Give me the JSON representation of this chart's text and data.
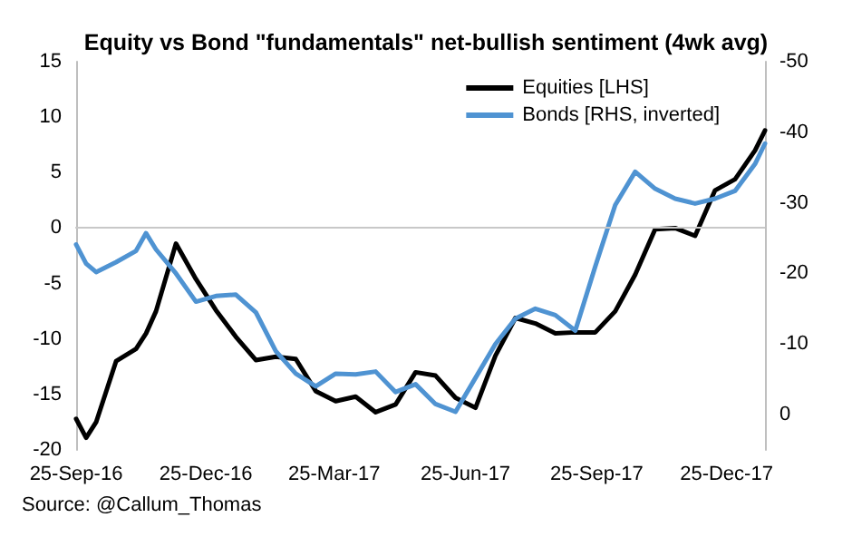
{
  "chart_data": {
    "type": "line",
    "title": "Equity vs Bond \"fundamentals\" net-bullish sentiment (4wk avg)",
    "annotations": [
      "Source: @Callum_Thomas"
    ],
    "x": [
      "2016-09-25",
      "2016-10-02",
      "2016-10-09",
      "2016-10-23",
      "2016-11-06",
      "2016-11-13",
      "2016-11-20",
      "2016-12-04",
      "2016-12-18",
      "2017-01-01",
      "2017-01-15",
      "2017-01-29",
      "2017-02-12",
      "2017-02-26",
      "2017-03-12",
      "2017-03-26",
      "2017-04-09",
      "2017-04-23",
      "2017-05-07",
      "2017-05-21",
      "2017-06-04",
      "2017-06-18",
      "2017-07-02",
      "2017-07-16",
      "2017-07-30",
      "2017-08-13",
      "2017-08-27",
      "2017-09-10",
      "2017-09-24",
      "2017-10-08",
      "2017-10-22",
      "2017-11-05",
      "2017-11-19",
      "2017-12-03",
      "2017-12-17",
      "2017-12-31",
      "2018-01-14",
      "2018-01-21"
    ],
    "series": [
      {
        "name": "Equities [LHS]",
        "color": "#000000",
        "values": [
          -17.2,
          -18.9,
          -17.5,
          -12,
          -10.9,
          -9.5,
          -7.5,
          -1.4,
          -4.6,
          -7.4,
          -9.8,
          -11.9,
          -11.6,
          -11.8,
          -14.7,
          -15.6,
          -15.2,
          -16.6,
          -15.9,
          -13,
          -13.3,
          -15.3,
          -16.2,
          -11.5,
          -8.1,
          -8.6,
          -9.5,
          -9.4,
          -9.4,
          -7.5,
          -4.2,
          -0.1,
          0,
          -0.7,
          3.4,
          4.4,
          7,
          8.8
        ]
      },
      {
        "name": "Bonds [RHS, inverted]",
        "color": "#4f93d2",
        "axis": "y2",
        "values": [
          -24.1,
          -21.4,
          -20.2,
          -21.6,
          -23.2,
          -25.7,
          -23.4,
          -20,
          -16,
          -16.8,
          -17,
          -14.5,
          -9,
          -5.8,
          -4,
          -5.8,
          -5.7,
          -6.1,
          -3.2,
          -4.3,
          -1.5,
          -0.4,
          -5.2,
          -10,
          -13.6,
          -15,
          -14.1,
          -11.9,
          -21,
          -29.7,
          -34.4,
          -32,
          -30.6,
          -29.9,
          -30.6,
          -31.7,
          -35.5,
          -38.4
        ]
      }
    ],
    "xlim": [
      "2016-09-25",
      "2018-01-21"
    ],
    "xticks": [
      {
        "value": "2016-09-25",
        "label": "25-Sep-16"
      },
      {
        "value": "2016-12-25",
        "label": "25-Dec-16"
      },
      {
        "value": "2017-03-25",
        "label": "25-Mar-17"
      },
      {
        "value": "2017-06-25",
        "label": "25-Jun-17"
      },
      {
        "value": "2017-09-25",
        "label": "25-Sep-17"
      },
      {
        "value": "2017-12-25",
        "label": "25-Dec-17"
      }
    ],
    "ylim": [
      -20,
      15
    ],
    "yticks": [
      -20,
      -15,
      -10,
      -5,
      0,
      5,
      10,
      15
    ],
    "y2lim": [
      5,
      -50
    ],
    "y2ticks": [
      0,
      -10,
      -20,
      -30,
      -40,
      -50
    ],
    "ref_lines": [
      {
        "axis": "y",
        "value": 0,
        "color": "#c8c8c8"
      }
    ],
    "grid": false,
    "legend": "top right",
    "marker": "none",
    "line_style": "solid"
  }
}
